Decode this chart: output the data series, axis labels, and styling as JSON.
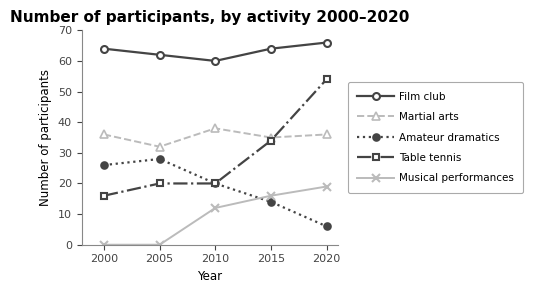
{
  "title": "Number of participants, by activity 2000–2020",
  "xlabel": "Year",
  "ylabel": "Number of participants",
  "years": [
    2000,
    2005,
    2010,
    2015,
    2020
  ],
  "series": {
    "Film club": [
      64,
      62,
      60,
      64,
      66
    ],
    "Martial arts": [
      36,
      32,
      38,
      35,
      36
    ],
    "Amateur dramatics": [
      26,
      28,
      20,
      14,
      6
    ],
    "Table tennis": [
      16,
      20,
      20,
      34,
      54
    ],
    "Musical performances": [
      0,
      0,
      12,
      16,
      19
    ]
  },
  "styles": {
    "Film club": {
      "color": "#444444",
      "linestyle": "-",
      "marker": "o",
      "markersize": 5,
      "linewidth": 1.6,
      "markerfacecolor": "white",
      "markeredgewidth": 1.5
    },
    "Martial arts": {
      "color": "#bbbbbb",
      "linestyle": "--",
      "marker": "^",
      "markersize": 6,
      "linewidth": 1.4,
      "markerfacecolor": "white",
      "markeredgewidth": 1.2
    },
    "Amateur dramatics": {
      "color": "#444444",
      "linestyle": ":",
      "marker": "o",
      "markersize": 5,
      "linewidth": 1.6,
      "markerfacecolor": "#444444",
      "markeredgewidth": 1.2
    },
    "Table tennis": {
      "color": "#444444",
      "linestyle": "-.",
      "marker": "s",
      "markersize": 5,
      "linewidth": 1.6,
      "markerfacecolor": "white",
      "markeredgewidth": 1.5
    },
    "Musical performances": {
      "color": "#bbbbbb",
      "linestyle": "-",
      "marker": "x",
      "markersize": 6,
      "linewidth": 1.4,
      "markerfacecolor": "#bbbbbb",
      "markeredgewidth": 1.5
    }
  },
  "ylim": [
    0,
    70
  ],
  "yticks": [
    0,
    10,
    20,
    30,
    40,
    50,
    60,
    70
  ],
  "xticks": [
    2000,
    2005,
    2010,
    2015,
    2020
  ],
  "background_color": "#ffffff",
  "title_fontsize": 11,
  "axis_label_fontsize": 8.5,
  "tick_fontsize": 8,
  "legend_fontsize": 7.5
}
